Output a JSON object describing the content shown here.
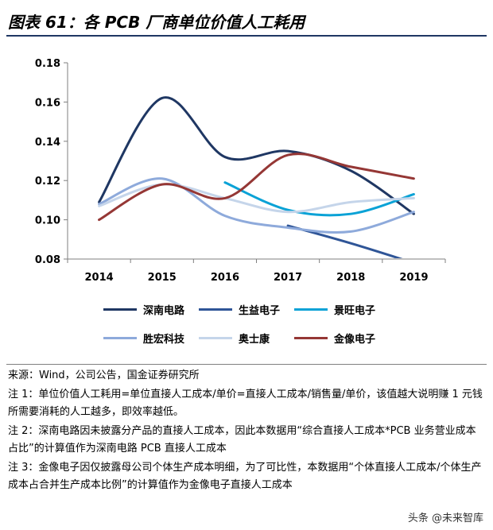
{
  "header": {
    "title": "图表 61：各 PCB 厂商单位价值人工耗用"
  },
  "chart_data": {
    "type": "line",
    "title": "各 PCB 厂商单位价值人工耗用",
    "xlabel": "",
    "ylabel": "",
    "x": [
      2014,
      2015,
      2016,
      2017,
      2018,
      2019
    ],
    "x_tick_labels": [
      "2014",
      "2015",
      "2016",
      "2017",
      "2018",
      "2019"
    ],
    "ylim": [
      0.08,
      0.18
    ],
    "y_ticks": [
      0.08,
      0.1,
      0.12,
      0.14,
      0.16,
      0.18
    ],
    "y_tick_labels": [
      "0.08",
      "0.10",
      "0.12",
      "0.14",
      "0.16",
      "0.18"
    ],
    "grid": false,
    "legend_position": "bottom",
    "series": [
      {
        "name": "深南电路",
        "color": "#1f3763",
        "values": [
          0.109,
          0.162,
          0.132,
          0.135,
          0.125,
          0.103
        ]
      },
      {
        "name": "生益电子",
        "color": "#2f5597",
        "values": [
          null,
          null,
          null,
          0.097,
          0.088,
          0.078
        ]
      },
      {
        "name": "景旺电子",
        "color": "#0aa2d6",
        "values": [
          null,
          null,
          0.119,
          0.105,
          0.103,
          0.113
        ]
      },
      {
        "name": "胜宏科技",
        "color": "#8eaadb",
        "values": [
          0.108,
          0.121,
          0.102,
          0.096,
          0.094,
          0.104
        ]
      },
      {
        "name": "奥士康",
        "color": "#c5d5ea",
        "values": [
          0.107,
          0.118,
          0.111,
          0.104,
          0.109,
          0.111
        ]
      },
      {
        "name": "金像电子",
        "color": "#953735",
        "values": [
          0.1,
          0.118,
          0.111,
          0.133,
          0.127,
          0.121
        ]
      }
    ]
  },
  "notes": {
    "source": "来源：Wind，公司公告，国金证券研究所",
    "note1": "注 1：单位价值人工耗用=单位直接人工成本/单价=直接人工成本/销售量/单价，该值越大说明赚 1 元钱所需要消耗的人工越多，即效率越低。",
    "note2": "注 2：深南电路因未披露分产品的直接人工成本，因此本数据用“综合直接人工成本*PCB 业务营业成本占比”的计算值作为深南电路 PCB 直接人工成本",
    "note3": "注 3：金像电子因仅披露母公司个体生产成本明细，为了可比性，本数据用“个体直接人工成本/个体生产成本占合并生产成本比例”的计算值作为金像电子直接人工成本"
  },
  "watermark": "头条 @未来智库"
}
